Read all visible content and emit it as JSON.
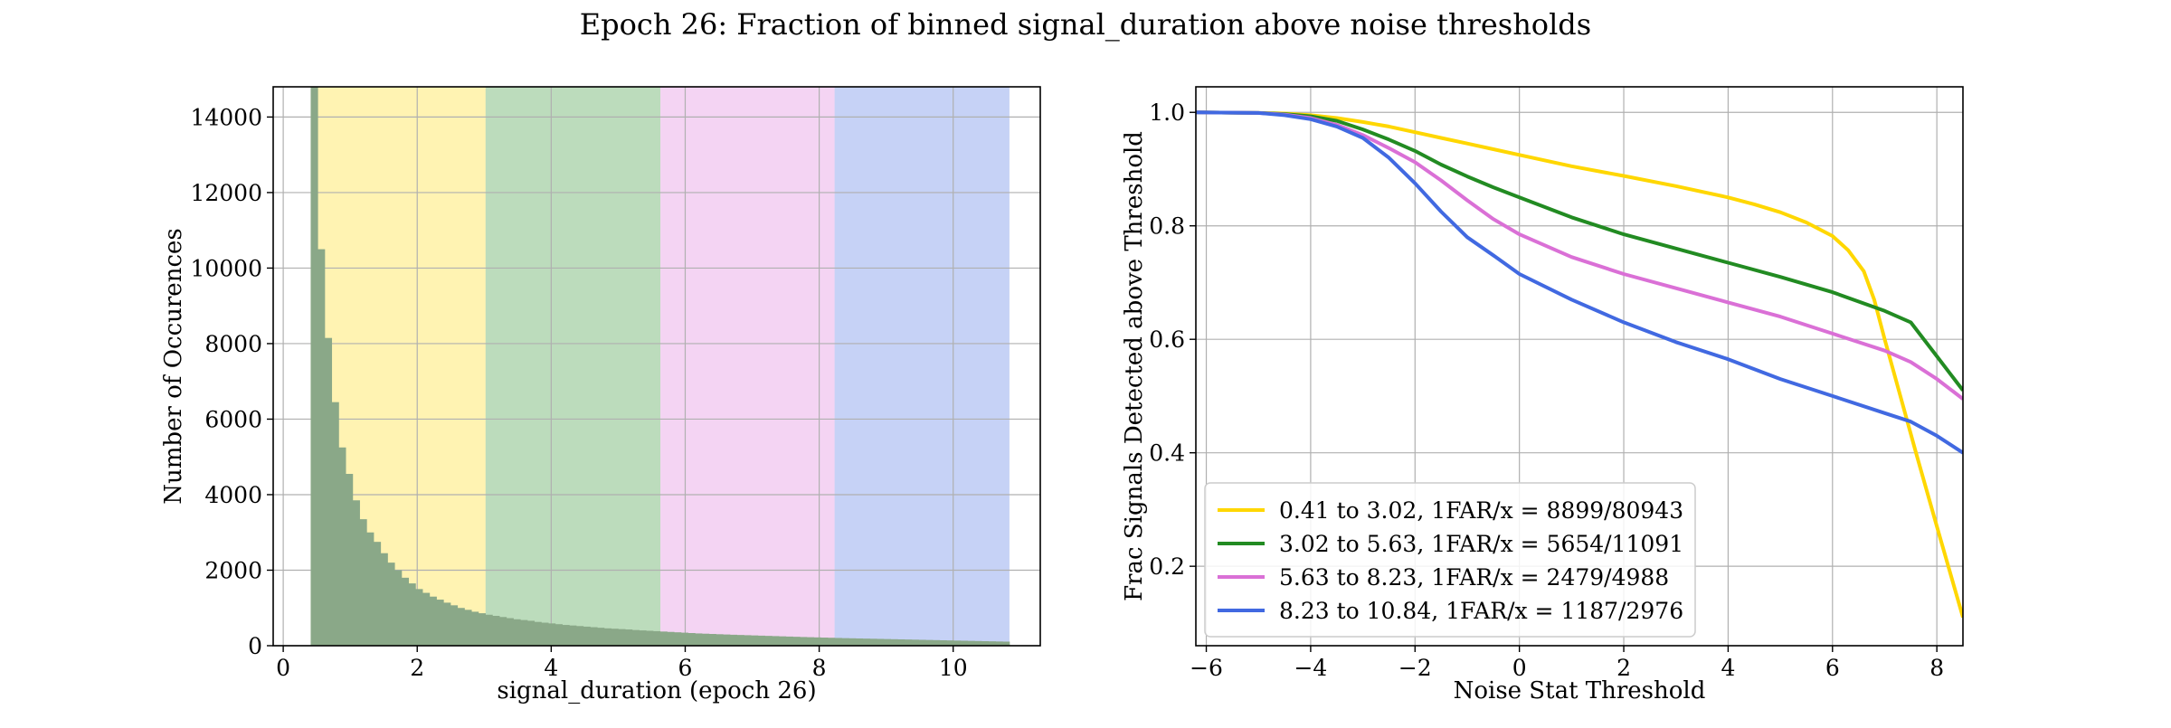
{
  "suptitle": "Epoch 26: Fraction of binned signal_duration above noise thresholds",
  "chart_data": [
    {
      "type": "bar",
      "subtype": "histogram",
      "xlabel": "signal_duration (epoch 26)",
      "ylabel": "Number of Occurences",
      "xlim": [
        -0.15,
        11.3
      ],
      "ylim": [
        0,
        14800
      ],
      "xticks": [
        0,
        2,
        4,
        6,
        8,
        10
      ],
      "yticks": [
        0,
        2000,
        4000,
        6000,
        8000,
        10000,
        12000,
        14000
      ],
      "grid": true,
      "bin_start": 0.41,
      "bin_width": 0.1043,
      "counts": [
        14800,
        10500,
        8150,
        6450,
        5250,
        4550,
        3850,
        3350,
        3000,
        2750,
        2450,
        2200,
        2000,
        1800,
        1650,
        1500,
        1400,
        1300,
        1220,
        1140,
        1070,
        1000,
        950,
        900,
        860,
        820,
        790,
        760,
        730,
        700,
        680,
        660,
        630,
        610,
        590,
        570,
        550,
        535,
        520,
        505,
        490,
        475,
        460,
        450,
        440,
        430,
        415,
        405,
        395,
        385,
        375,
        365,
        355,
        345,
        335,
        325,
        318,
        311,
        304,
        297,
        290,
        284,
        278,
        272,
        266,
        260,
        254,
        248,
        242,
        236,
        230,
        225,
        220,
        215,
        210,
        205,
        200,
        196,
        192,
        188,
        184,
        180,
        176,
        172,
        168,
        164,
        160,
        156,
        152,
        148,
        144,
        140,
        136,
        132,
        128,
        124,
        120,
        116,
        112,
        108
      ],
      "bar_color": "#8aa888",
      "regions": [
        {
          "from": 0.41,
          "to": 3.02,
          "color": "#ffd700"
        },
        {
          "from": 3.02,
          "to": 5.63,
          "color": "#228b22"
        },
        {
          "from": 5.63,
          "to": 8.23,
          "color": "#da70d6"
        },
        {
          "from": 8.23,
          "to": 10.84,
          "color": "#4169e1"
        }
      ]
    },
    {
      "type": "line",
      "xlabel": "Noise Stat Threshold",
      "ylabel": "Frac Signals Detected above Threshold",
      "xlim": [
        -6.2,
        8.5
      ],
      "ylim": [
        0.06,
        1.045
      ],
      "xticks": [
        -6,
        -4,
        -2,
        0,
        2,
        4,
        6,
        8
      ],
      "yticks": [
        0.2,
        0.4,
        0.6,
        0.8,
        1.0
      ],
      "grid": true,
      "legend_position": "lower-left",
      "series": [
        {
          "name": "0.41 to 3.02, 1FAR/x = 8899/80943",
          "color": "#ffd700",
          "x": [
            -6.2,
            -5,
            -4.5,
            -4,
            -3.5,
            -3,
            -2.5,
            -2,
            -1.5,
            -1,
            -0.5,
            0,
            1,
            2,
            3,
            4,
            4.5,
            5,
            5.5,
            6,
            6.3,
            6.6,
            6.8,
            7,
            7.3,
            7.6,
            8,
            8.5
          ],
          "y": [
            1.0,
            0.999,
            0.998,
            0.995,
            0.99,
            0.983,
            0.975,
            0.965,
            0.955,
            0.945,
            0.935,
            0.925,
            0.905,
            0.888,
            0.87,
            0.85,
            0.838,
            0.824,
            0.806,
            0.782,
            0.757,
            0.72,
            0.67,
            0.6,
            0.5,
            0.4,
            0.27,
            0.11
          ]
        },
        {
          "name": "3.02 to 5.63, 1FAR/x = 5654/11091",
          "color": "#228b22",
          "x": [
            -6.2,
            -5,
            -4.5,
            -4,
            -3.5,
            -3,
            -2.5,
            -2,
            -1.5,
            -1,
            -0.5,
            0,
            1,
            2,
            3,
            4,
            5,
            6,
            7,
            7.5,
            8,
            8.5
          ],
          "y": [
            1.0,
            0.999,
            0.997,
            0.993,
            0.985,
            0.97,
            0.952,
            0.932,
            0.908,
            0.887,
            0.868,
            0.85,
            0.815,
            0.785,
            0.76,
            0.735,
            0.71,
            0.683,
            0.65,
            0.63,
            0.57,
            0.51
          ]
        },
        {
          "name": "5.63 to 8.23, 1FAR/x = 2479/4988",
          "color": "#da70d6",
          "x": [
            -6.2,
            -5,
            -4.5,
            -4,
            -3.5,
            -3,
            -2.5,
            -2,
            -1.5,
            -1,
            -0.5,
            0,
            1,
            2,
            3,
            4,
            5,
            6,
            7,
            7.5,
            8,
            8.5
          ],
          "y": [
            1.0,
            0.999,
            0.996,
            0.99,
            0.978,
            0.96,
            0.937,
            0.912,
            0.88,
            0.845,
            0.812,
            0.785,
            0.745,
            0.715,
            0.69,
            0.665,
            0.64,
            0.61,
            0.58,
            0.56,
            0.53,
            0.495
          ]
        },
        {
          "name": "8.23 to 10.84, 1FAR/x = 1187/2976",
          "color": "#4169e1",
          "x": [
            -6.2,
            -5,
            -4.5,
            -4,
            -3.5,
            -3,
            -2.5,
            -2,
            -1.5,
            -1,
            -0.5,
            0,
            1,
            2,
            3,
            4,
            5,
            6,
            7,
            7.5,
            8,
            8.5
          ],
          "y": [
            1.0,
            0.999,
            0.995,
            0.988,
            0.975,
            0.955,
            0.92,
            0.875,
            0.825,
            0.78,
            0.748,
            0.715,
            0.67,
            0.63,
            0.595,
            0.565,
            0.53,
            0.5,
            0.47,
            0.455,
            0.43,
            0.4
          ]
        }
      ]
    }
  ]
}
